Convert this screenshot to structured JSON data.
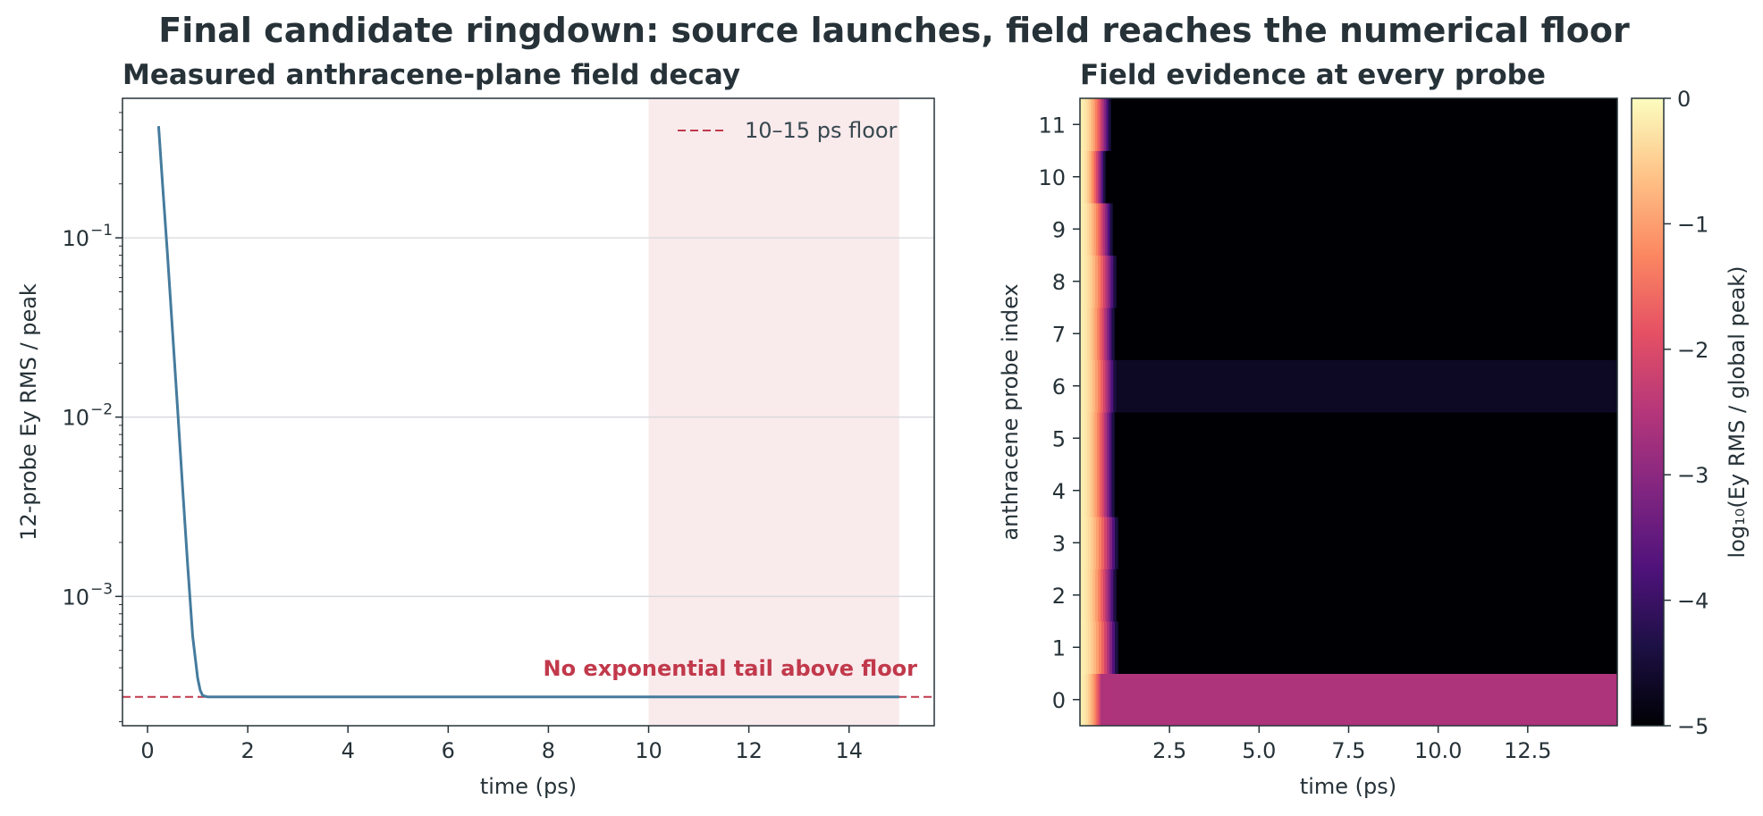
{
  "figure": {
    "suptitle": "Final candidate ringdown: source launches, field reaches the numerical floor"
  },
  "chart_data": [
    {
      "type": "line",
      "title": "Measured anthracene-plane field decay",
      "xlabel": "time (ps)",
      "ylabel": "12-probe Ey RMS / peak",
      "yscale": "log",
      "xlim": [
        -0.5,
        15.7
      ],
      "ylim": [
        0.00019,
        0.6
      ],
      "xticks": [
        0,
        2,
        4,
        6,
        8,
        10,
        12,
        14
      ],
      "xtick_labels": [
        "0",
        "2",
        "4",
        "6",
        "8",
        "10",
        "12",
        "14"
      ],
      "yticks": [
        0.1,
        0.01,
        0.001
      ],
      "ytick_labels": [
        "10",
        "10",
        "10"
      ],
      "ytick_exponents": [
        "−1",
        "−2",
        "−3"
      ],
      "grid": "y",
      "series": [
        {
          "color": "#457b9d",
          "x": [
            0.22,
            0.3,
            0.4,
            0.5,
            0.6,
            0.7,
            0.8,
            0.9,
            1.0,
            1.05,
            1.1,
            1.2,
            1.5,
            2,
            4,
            6,
            8,
            10,
            12,
            14,
            15
          ],
          "y": [
            0.42,
            0.2,
            0.08,
            0.03,
            0.011,
            0.004,
            0.0015,
            0.0006,
            0.00035,
            0.0003,
            0.00028,
            0.000275,
            0.000275,
            0.000275,
            0.000275,
            0.000275,
            0.000275,
            0.000275,
            0.000275,
            0.000275,
            0.000275
          ]
        }
      ],
      "floor": {
        "value": 0.000275,
        "color": "#c1394b",
        "legend_label": "10–15 ps floor",
        "legend_position": "top-right"
      },
      "shaded_window": {
        "x": [
          10,
          15
        ],
        "color": "#f9eaec"
      },
      "annotation": {
        "text": "No exponential tail above floor",
        "color": "#c1394b"
      }
    },
    {
      "type": "heatmap",
      "title": "Field evidence at every probe",
      "xlabel": "time (ps)",
      "ylabel": "anthracene probe index",
      "xlim": [
        0.0,
        15.0
      ],
      "xticks": [
        2.5,
        5.0,
        7.5,
        10.0,
        12.5
      ],
      "xtick_labels": [
        "2.5",
        "5.0",
        "7.5",
        "10.0",
        "12.5"
      ],
      "yticks": [
        0,
        1,
        2,
        3,
        4,
        5,
        6,
        7,
        8,
        9,
        10,
        11
      ],
      "ytick_labels": [
        "0",
        "1",
        "2",
        "3",
        "4",
        "5",
        "6",
        "7",
        "8",
        "9",
        "10",
        "11"
      ],
      "colormap": "magma",
      "colorbar": {
        "label": "log₁₀(Ey RMS / global peak)",
        "range": [
          -5,
          0
        ],
        "ticks": [
          0,
          -1,
          -2,
          -3,
          -4,
          -5
        ],
        "tick_labels": [
          "0",
          "−1",
          "−2",
          "−3",
          "−4",
          "−5"
        ]
      },
      "rows": [
        {
          "probe": 0,
          "pulse_end": 0.8,
          "floor_value": -2.6
        },
        {
          "probe": 1,
          "pulse_end": 1.05,
          "floor_value": -5.0
        },
        {
          "probe": 2,
          "pulse_end": 1.0,
          "floor_value": -5.0
        },
        {
          "probe": 3,
          "pulse_end": 1.05,
          "floor_value": -5.0
        },
        {
          "probe": 4,
          "pulse_end": 0.95,
          "floor_value": -5.0
        },
        {
          "probe": 5,
          "pulse_end": 0.95,
          "floor_value": -5.0
        },
        {
          "probe": 6,
          "pulse_end": 1.0,
          "floor_value": -4.7
        },
        {
          "probe": 7,
          "pulse_end": 0.95,
          "floor_value": -5.0
        },
        {
          "probe": 8,
          "pulse_end": 1.0,
          "floor_value": -5.0
        },
        {
          "probe": 9,
          "pulse_end": 0.9,
          "floor_value": -5.0
        },
        {
          "probe": 10,
          "pulse_end": 0.7,
          "floor_value": -5.0
        },
        {
          "probe": 11,
          "pulse_end": 0.85,
          "floor_value": -5.0
        }
      ]
    }
  ]
}
